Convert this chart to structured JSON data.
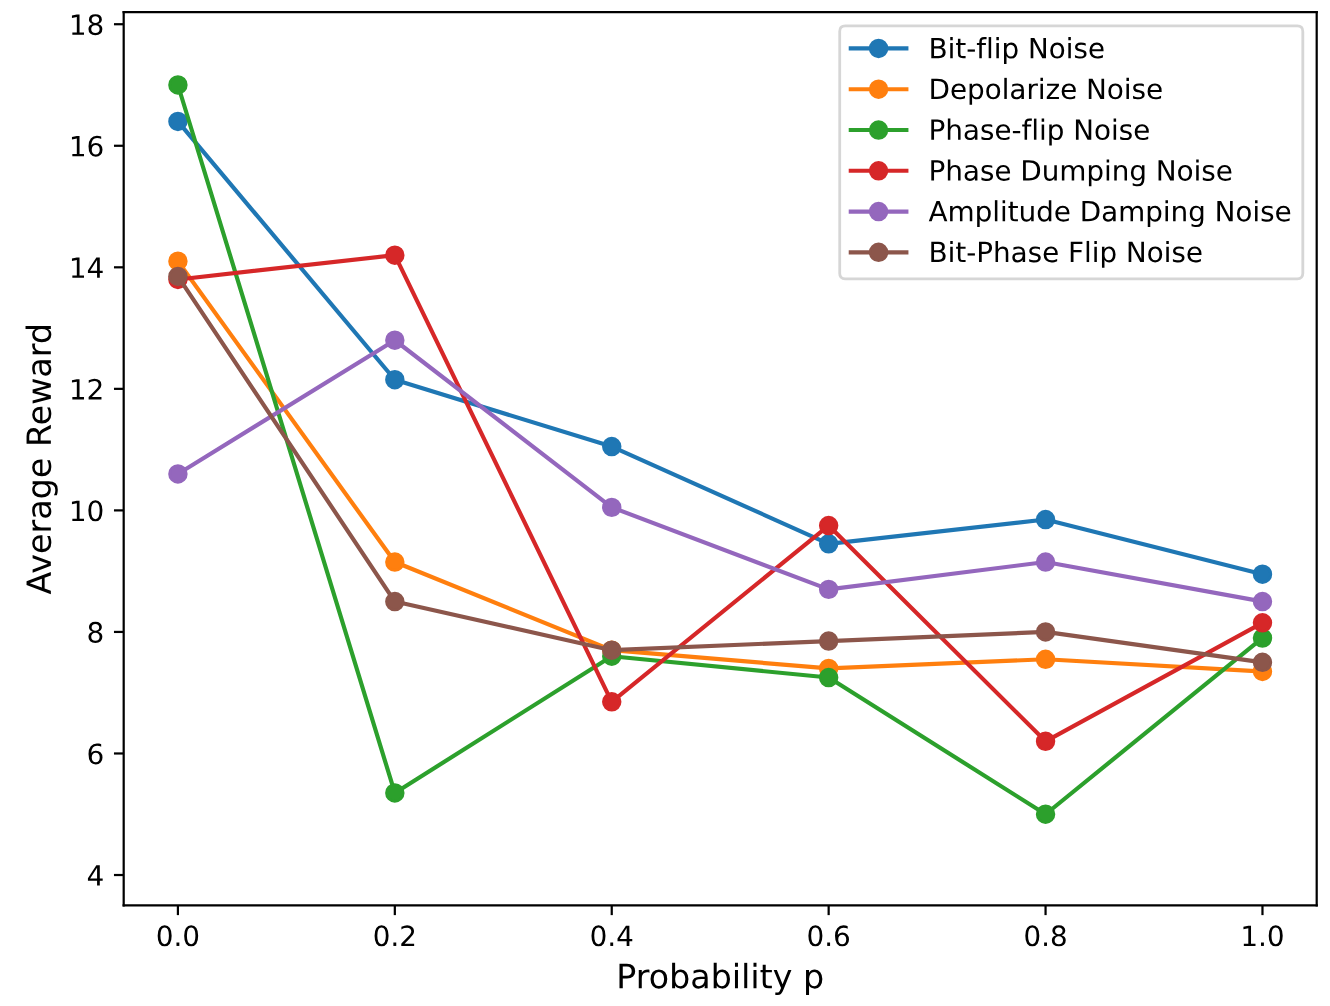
{
  "chart_data": {
    "type": "line",
    "xlabel": "Probability p",
    "ylabel": "Average Reward",
    "x": [
      0.0,
      0.2,
      0.4,
      0.6,
      0.8,
      1.0
    ],
    "xlim": [
      -0.05,
      1.05
    ],
    "xticks": [
      {
        "value": 0,
        "label": "0.0"
      },
      {
        "value": 0.2,
        "label": "0.2"
      },
      {
        "value": 0.4,
        "label": "0.4"
      },
      {
        "value": 0.6,
        "label": "0.6"
      },
      {
        "value": 0.8,
        "label": "0.8"
      },
      {
        "value": 1,
        "label": "1.0"
      }
    ],
    "ylim": [
      3.5,
      18.2
    ],
    "yticks": [
      4,
      6,
      8,
      10,
      12,
      14,
      16,
      18
    ],
    "marker": "circle",
    "line_style": "solid",
    "legend": "top right",
    "grid": false,
    "series": [
      {
        "name": "Bit-flip Noise",
        "color": "#1f77b4",
        "values": [
          16.4,
          12.15,
          11.05,
          9.45,
          9.85,
          8.95
        ]
      },
      {
        "name": "Depolarize Noise",
        "color": "#ff7f0e",
        "values": [
          14.1,
          9.15,
          7.7,
          7.4,
          7.55,
          7.35
        ]
      },
      {
        "name": "Phase-flip Noise",
        "color": "#2ca02c",
        "values": [
          17.0,
          5.35,
          7.6,
          7.25,
          5.0,
          7.9
        ]
      },
      {
        "name": "Phase Dumping Noise",
        "color": "#d62728",
        "values": [
          13.8,
          14.2,
          6.85,
          9.75,
          6.2,
          8.15
        ]
      },
      {
        "name": "Amplitude Damping Noise",
        "color": "#9467bd",
        "values": [
          10.6,
          12.8,
          10.05,
          8.7,
          9.15,
          8.5
        ]
      },
      {
        "name": "Bit-Phase Flip Noise",
        "color": "#8c564b",
        "values": [
          13.85,
          8.5,
          7.7,
          7.85,
          8.0,
          7.5
        ]
      }
    ]
  }
}
